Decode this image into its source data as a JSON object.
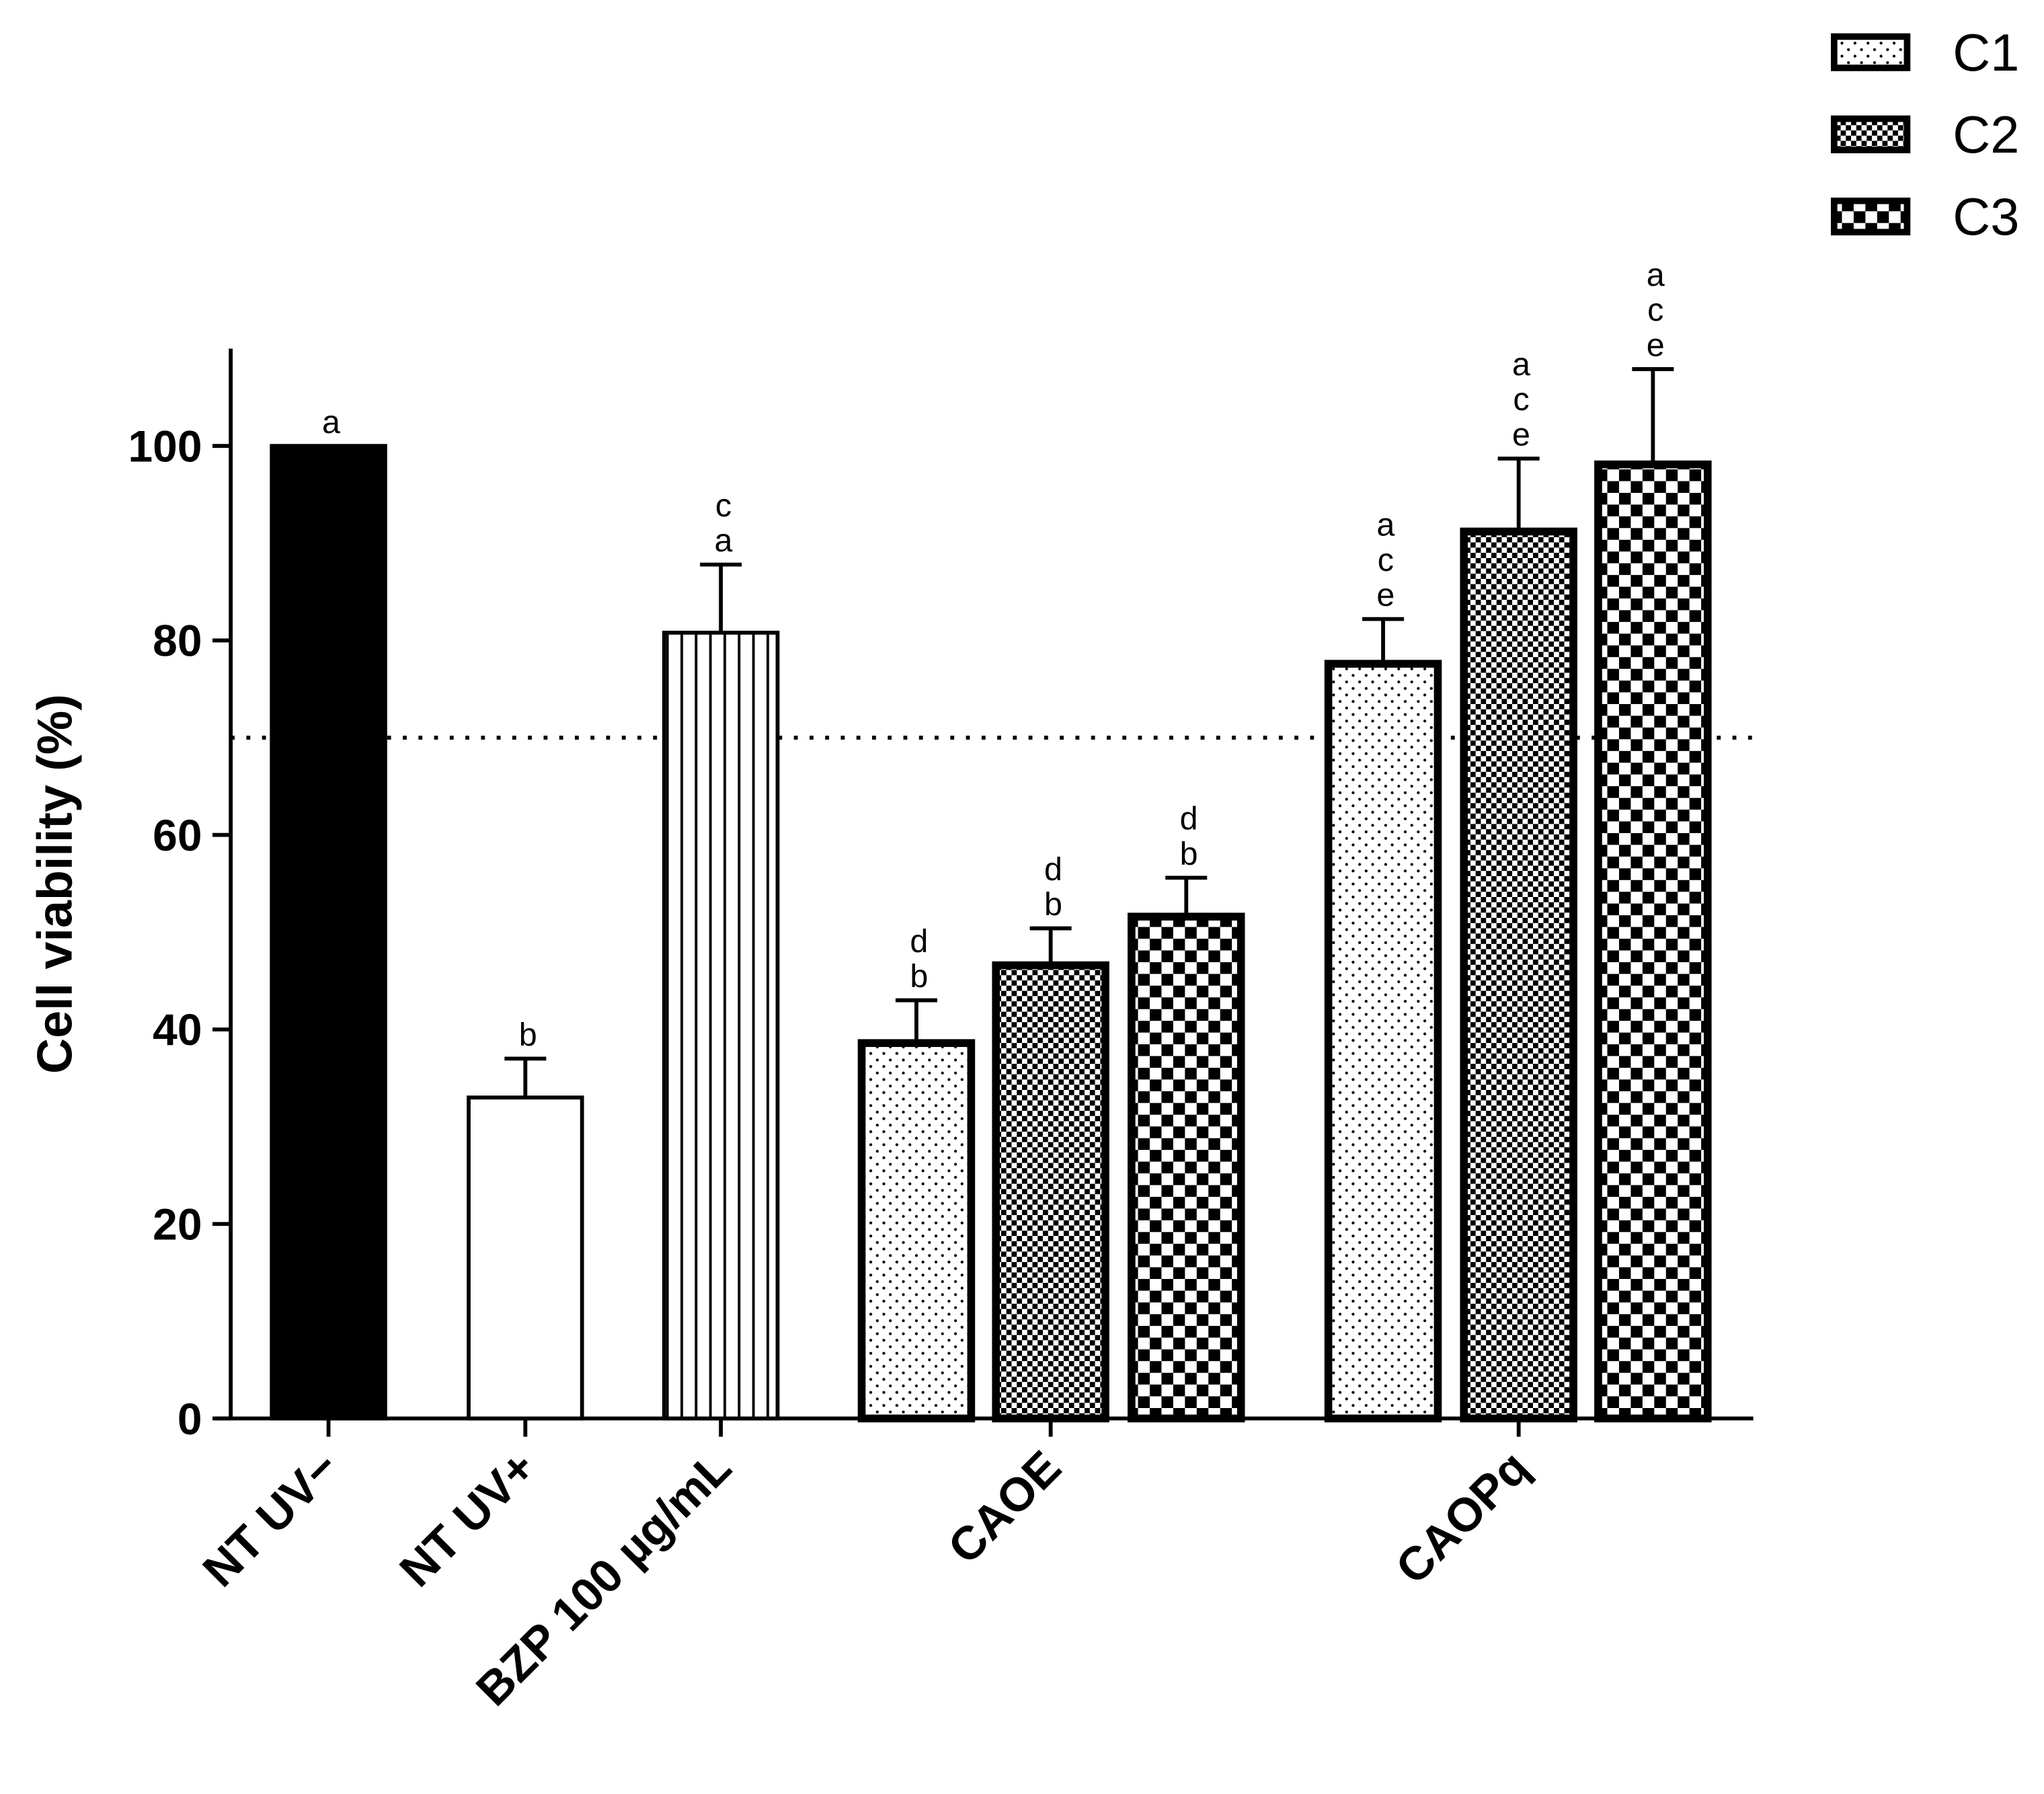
{
  "chart_data": {
    "type": "bar",
    "title": "",
    "xlabel": "",
    "ylabel": "Cell viability (%)",
    "ylim": [
      0,
      110
    ],
    "yticks": [
      0,
      20,
      40,
      60,
      80,
      100
    ],
    "reference_line": 70,
    "grid": false,
    "legend": {
      "placement": "top-right",
      "entries": [
        "C1",
        "C2",
        "C3"
      ]
    },
    "categories": [
      "NT UV−",
      "NT UV+",
      "BZP 100 µg/mL",
      "CAOE",
      "CAOPq"
    ],
    "bars": [
      {
        "category": "NT UV−",
        "series": null,
        "pattern": "solid-black",
        "value": 100,
        "error": 0,
        "letters": [
          "a"
        ]
      },
      {
        "category": "NT UV+",
        "series": null,
        "pattern": "white",
        "value": 33,
        "error": 4,
        "letters": [
          "b"
        ]
      },
      {
        "category": "BZP 100 µg/mL",
        "series": null,
        "pattern": "vertical-lines",
        "value": 80.8,
        "error": 7,
        "letters": [
          "c",
          "a"
        ]
      },
      {
        "category": "CAOE",
        "series": "C1",
        "pattern": "dots",
        "value": 38.6,
        "error": 4.4,
        "letters": [
          "d",
          "b"
        ]
      },
      {
        "category": "CAOE",
        "series": "C2",
        "pattern": "fine-check",
        "value": 46.6,
        "error": 3.8,
        "letters": [
          "d",
          "b"
        ]
      },
      {
        "category": "CAOE",
        "series": "C3",
        "pattern": "coarse-check",
        "value": 51.6,
        "error": 4,
        "letters": [
          "d",
          "b"
        ]
      },
      {
        "category": "CAOPq",
        "series": "C1",
        "pattern": "dots",
        "value": 77.6,
        "error": 4.6,
        "letters": [
          "a",
          "c",
          "e"
        ]
      },
      {
        "category": "CAOPq",
        "series": "C2",
        "pattern": "fine-check",
        "value": 91.2,
        "error": 7.5,
        "letters": [
          "a",
          "c",
          "e"
        ]
      },
      {
        "category": "CAOPq",
        "series": "C3",
        "pattern": "coarse-check",
        "value": 98.1,
        "error": 9.8,
        "letters": [
          "a",
          "c",
          "e"
        ]
      }
    ]
  }
}
